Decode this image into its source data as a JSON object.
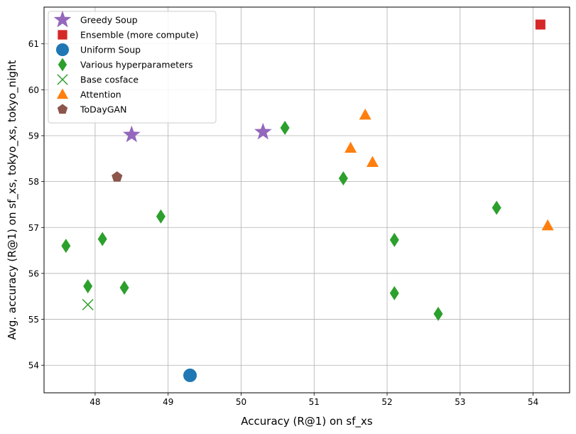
{
  "chart_data": {
    "type": "scatter",
    "title": "",
    "xlabel": "Accuracy (R@1)  on sf_xs",
    "ylabel": "Avg. accuracy (R@1) on sf_xs, tokyo_xs, tokyo_night",
    "xlim": [
      47.3,
      54.5
    ],
    "ylim": [
      53.4,
      61.8
    ],
    "xticks": [
      48,
      49,
      50,
      51,
      52,
      53,
      54
    ],
    "yticks": [
      54,
      55,
      56,
      57,
      58,
      59,
      60,
      61
    ],
    "grid": true,
    "legend_position": "top-left",
    "series": [
      {
        "name": "Greedy Soup",
        "marker": "star",
        "color": "#9467bd",
        "points": [
          [
            48.5,
            59.02
          ],
          [
            50.3,
            59.08
          ]
        ]
      },
      {
        "name": "Ensemble (more compute)",
        "marker": "square",
        "color": "#d62728",
        "points": [
          [
            54.1,
            61.42
          ]
        ]
      },
      {
        "name": "Uniform Soup",
        "marker": "circle",
        "color": "#1f77b4",
        "points": [
          [
            49.3,
            53.78
          ]
        ]
      },
      {
        "name": "Various hyperparameters",
        "marker": "thin_diamond",
        "color": "#2ca02c",
        "points": [
          [
            47.6,
            56.6
          ],
          [
            47.9,
            55.72
          ],
          [
            48.1,
            56.75
          ],
          [
            48.4,
            55.69
          ],
          [
            48.9,
            57.24
          ],
          [
            50.6,
            59.17
          ],
          [
            51.4,
            58.07
          ],
          [
            52.1,
            56.73
          ],
          [
            52.1,
            55.57
          ],
          [
            52.7,
            55.12
          ],
          [
            53.5,
            57.43
          ]
        ]
      },
      {
        "name": "Base cosface",
        "marker": "x",
        "color": "#2ca02c",
        "points": [
          [
            47.9,
            55.32
          ]
        ]
      },
      {
        "name": "Attention",
        "marker": "triangle",
        "color": "#ff7f0e",
        "points": [
          [
            51.5,
            58.73
          ],
          [
            51.7,
            59.45
          ],
          [
            51.8,
            58.42
          ],
          [
            54.2,
            57.04
          ]
        ]
      },
      {
        "name": "ToDayGAN",
        "marker": "pentagon",
        "color": "#8c564b",
        "points": [
          [
            48.3,
            58.1
          ]
        ]
      }
    ]
  }
}
